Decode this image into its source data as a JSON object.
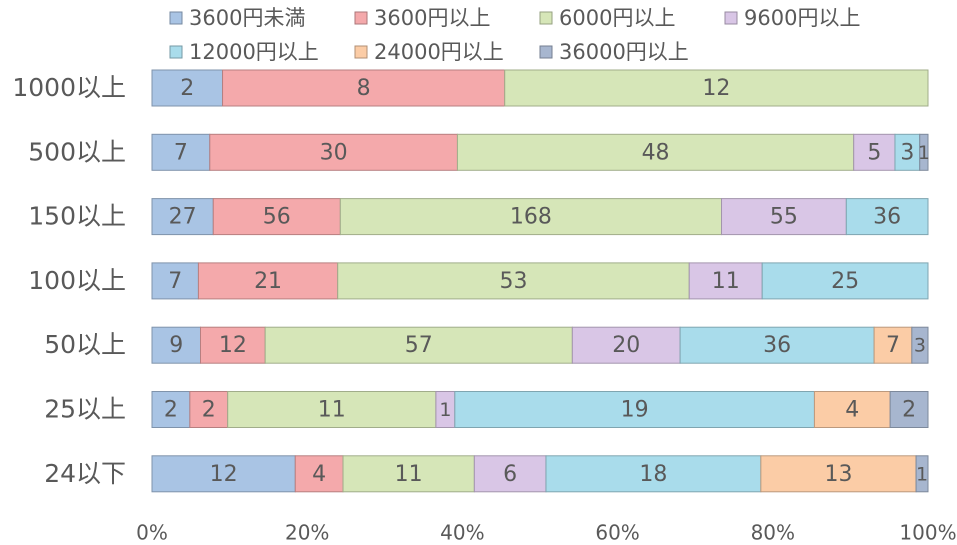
{
  "chart_data": {
    "type": "bar",
    "orientation": "horizontal",
    "stacked": "percent",
    "categories": [
      "1000以上",
      "500以上",
      "150以上",
      "100以上",
      "50以上",
      "25以上",
      "24以下"
    ],
    "series": [
      {
        "name": "3600円未満",
        "color": "#a9c4e4",
        "values": [
          2,
          7,
          27,
          7,
          9,
          2,
          12
        ]
      },
      {
        "name": "3600円以上",
        "color": "#f4a9ab",
        "values": [
          8,
          30,
          56,
          21,
          12,
          2,
          4
        ]
      },
      {
        "name": "6000円以上",
        "color": "#d6e6b8",
        "values": [
          12,
          48,
          168,
          53,
          57,
          11,
          11
        ]
      },
      {
        "name": "9600円以上",
        "color": "#d9c6e6",
        "values": [
          0,
          5,
          55,
          11,
          20,
          1,
          6
        ]
      },
      {
        "name": "12000円以上",
        "color": "#a9dceb",
        "values": [
          0,
          3,
          36,
          25,
          36,
          19,
          18
        ]
      },
      {
        "name": "24000円以上",
        "color": "#fbcca6",
        "values": [
          0,
          0,
          0,
          0,
          7,
          4,
          13
        ]
      },
      {
        "name": "36000円以上",
        "color": "#a7b6cf",
        "values": [
          0,
          1,
          0,
          0,
          3,
          2,
          1
        ]
      }
    ],
    "xticks": [
      "0%",
      "20%",
      "40%",
      "60%",
      "80%",
      "100%"
    ],
    "xlim": [
      0,
      100
    ],
    "legend_position": "top",
    "grid": false,
    "title": "",
    "xlabel": "",
    "ylabel": ""
  }
}
